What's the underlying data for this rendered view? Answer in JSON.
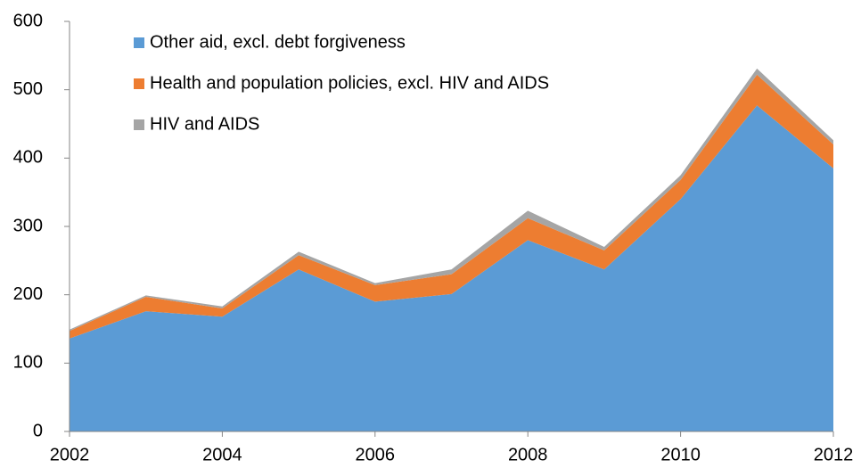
{
  "chart_data": {
    "type": "stacked_area",
    "x": [
      2002,
      2003,
      2004,
      2005,
      2006,
      2007,
      2008,
      2009,
      2010,
      2011,
      2012
    ],
    "series": [
      {
        "name": "Other aid, excl. debt forgiveness",
        "color": "#5b9bd5",
        "values": [
          136,
          176,
          168,
          237,
          190,
          201,
          280,
          237,
          340,
          477,
          385
        ]
      },
      {
        "name": "Health and population policies, excl. HIV and AIDS",
        "color": "#ed7d31",
        "values": [
          11,
          21,
          12,
          21,
          24,
          29,
          32,
          28,
          28,
          45,
          35
        ]
      },
      {
        "name": "HIV and AIDS",
        "color": "#a5a5a5",
        "values": [
          2,
          2,
          3,
          5,
          3,
          7,
          11,
          5,
          7,
          9,
          6
        ]
      }
    ],
    "xlim": [
      2002,
      2012
    ],
    "xticks": [
      2002,
      2004,
      2006,
      2008,
      2010,
      2012
    ],
    "ylim": [
      0,
      600
    ],
    "yticks": [
      0,
      100,
      200,
      300,
      400,
      500,
      600
    ],
    "legend": "top-left"
  }
}
